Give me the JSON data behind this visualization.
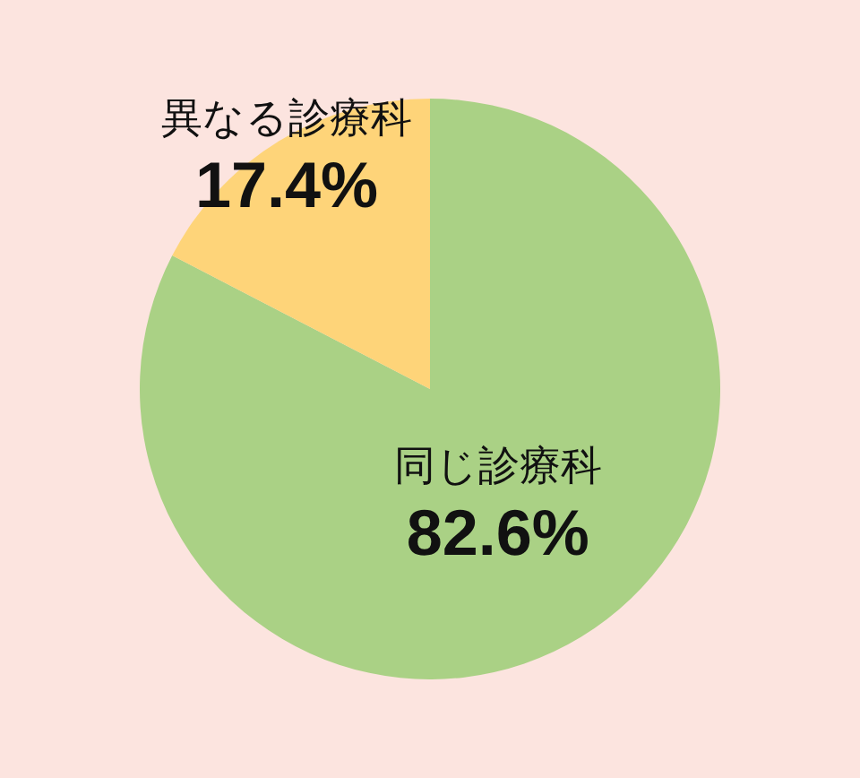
{
  "chart_data": {
    "type": "pie",
    "categories": [
      "同じ診療科",
      "異なる診療科"
    ],
    "values": [
      82.6,
      17.4
    ],
    "colors": [
      "#aad185",
      "#fed479"
    ],
    "value_labels": [
      "82.6%",
      "17.4%"
    ]
  }
}
